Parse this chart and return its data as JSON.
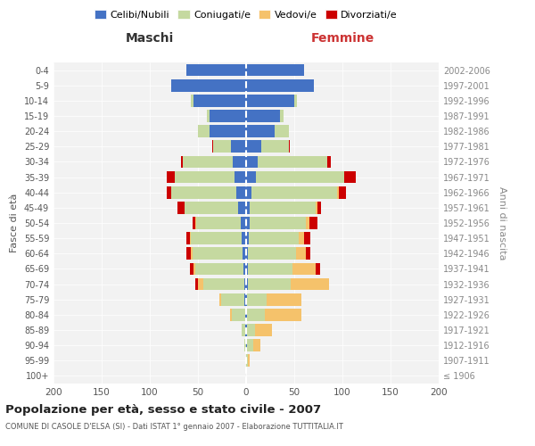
{
  "age_groups": [
    "100+",
    "95-99",
    "90-94",
    "85-89",
    "80-84",
    "75-79",
    "70-74",
    "65-69",
    "60-64",
    "55-59",
    "50-54",
    "45-49",
    "40-44",
    "35-39",
    "30-34",
    "25-29",
    "20-24",
    "15-19",
    "10-14",
    "5-9",
    "0-4"
  ],
  "birth_years": [
    "≤ 1906",
    "1907-1911",
    "1912-1916",
    "1917-1921",
    "1922-1926",
    "1927-1931",
    "1932-1936",
    "1937-1941",
    "1942-1946",
    "1947-1951",
    "1952-1956",
    "1957-1961",
    "1962-1966",
    "1967-1971",
    "1972-1976",
    "1977-1981",
    "1982-1986",
    "1987-1991",
    "1992-1996",
    "1997-2001",
    "2002-2006"
  ],
  "males": {
    "celibi": [
      0,
      0,
      0,
      1,
      1,
      2,
      2,
      3,
      4,
      5,
      6,
      8,
      10,
      12,
      14,
      16,
      38,
      38,
      55,
      78,
      62
    ],
    "coniugati": [
      0,
      0,
      2,
      4,
      14,
      24,
      42,
      50,
      52,
      52,
      46,
      56,
      68,
      62,
      52,
      18,
      12,
      3,
      2,
      0,
      0
    ],
    "vedovi": [
      0,
      0,
      0,
      0,
      2,
      2,
      6,
      2,
      1,
      1,
      1,
      0,
      0,
      0,
      0,
      0,
      0,
      0,
      0,
      0,
      0
    ],
    "divorziati": [
      0,
      0,
      0,
      0,
      0,
      0,
      3,
      3,
      5,
      4,
      3,
      7,
      4,
      8,
      2,
      1,
      0,
      0,
      0,
      0,
      0
    ]
  },
  "females": {
    "nubili": [
      0,
      0,
      1,
      1,
      1,
      1,
      2,
      2,
      2,
      3,
      4,
      4,
      6,
      10,
      12,
      16,
      30,
      35,
      50,
      70,
      60
    ],
    "coniugate": [
      0,
      2,
      6,
      8,
      18,
      20,
      44,
      46,
      50,
      52,
      58,
      68,
      88,
      92,
      72,
      28,
      14,
      4,
      3,
      0,
      0
    ],
    "vedove": [
      0,
      2,
      8,
      18,
      38,
      36,
      40,
      24,
      10,
      5,
      4,
      2,
      2,
      0,
      0,
      0,
      0,
      0,
      0,
      0,
      0
    ],
    "divorziate": [
      0,
      0,
      0,
      0,
      0,
      0,
      0,
      5,
      5,
      7,
      8,
      4,
      8,
      12,
      4,
      1,
      0,
      0,
      0,
      0,
      0
    ]
  },
  "colors": {
    "celibi_nubili": "#4472c4",
    "coniugati": "#c5d9a0",
    "vedovi": "#f5c26b",
    "divorziati": "#cc0000"
  },
  "xlim": 200,
  "title": "Popolazione per età, sesso e stato civile - 2007",
  "subtitle": "COMUNE DI CASOLE D'ELSA (SI) - Dati ISTAT 1° gennaio 2007 - Elaborazione TUTTITALIA.IT",
  "ylabel_left": "Fasce di età",
  "ylabel_right": "Anni di nascita",
  "legend_labels": [
    "Celibi/Nubili",
    "Coniugati/e",
    "Vedovi/e",
    "Divorziati/e"
  ],
  "header_left": "Maschi",
  "header_right": "Femmine",
  "bg_color": "#ffffff",
  "grid_color": "#cccccc",
  "bar_height": 0.8
}
